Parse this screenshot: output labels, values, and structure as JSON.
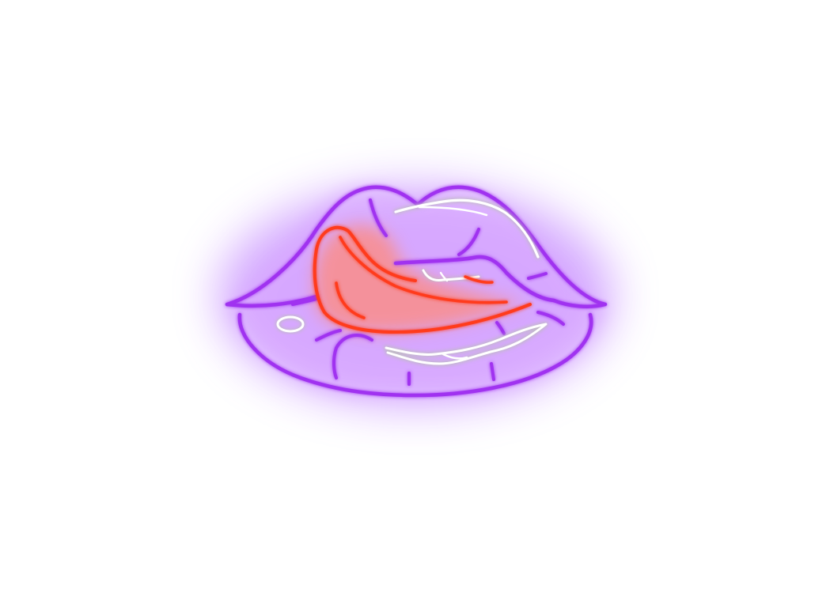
{
  "artwork": {
    "subject": "neon-lips-with-tongue",
    "colors": {
      "background": "#ffffff",
      "lip_tube": "#a033f0",
      "lip_glow": "#c47cff",
      "tongue_tube": "#ff3a1e",
      "tongue_glow": "#ff7f6a",
      "highlight_tube": "#ffffff",
      "highlight_glow": "#c8c8c8"
    }
  }
}
